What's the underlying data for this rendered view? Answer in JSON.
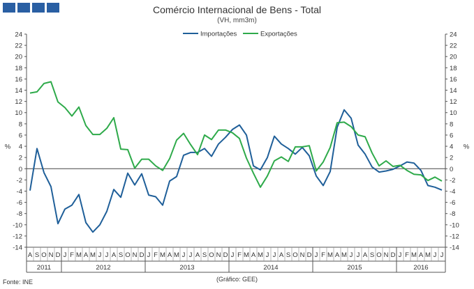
{
  "header": {
    "title": "Comércio Internacional de Bens - Total",
    "subtitle": "(VH, mm3m)"
  },
  "footer": {
    "source": "Fonte: INE",
    "credit": "(Gráfico: GEE)"
  },
  "colors": {
    "logo": "#2a5fa3",
    "importacoes": "#1f5f99",
    "exportacoes": "#2eaa4a"
  },
  "chart_data": {
    "type": "line",
    "ylabel": "%",
    "ylim": [
      -14,
      24
    ],
    "yticks": [
      -14,
      -12,
      -10,
      -8,
      -6,
      -4,
      -2,
      0,
      2,
      4,
      6,
      8,
      10,
      12,
      14,
      16,
      18,
      20,
      22,
      24
    ],
    "grid": false,
    "legend": "top-center",
    "categories": [
      "A",
      "S",
      "O",
      "N",
      "D",
      "J",
      "F",
      "M",
      "A",
      "M",
      "J",
      "J",
      "A",
      "S",
      "O",
      "N",
      "D",
      "J",
      "F",
      "M",
      "A",
      "M",
      "J",
      "J",
      "A",
      "S",
      "O",
      "N",
      "D",
      "J",
      "F",
      "M",
      "A",
      "M",
      "J",
      "J",
      "A",
      "S",
      "O",
      "N",
      "D",
      "J",
      "F",
      "M",
      "A",
      "M",
      "J",
      "J",
      "A",
      "S",
      "O",
      "N",
      "D",
      "J",
      "F",
      "M",
      "A",
      "M",
      "J",
      "J"
    ],
    "years": [
      {
        "label": "2011",
        "start": 0,
        "end": 4
      },
      {
        "label": "2012",
        "start": 5,
        "end": 16
      },
      {
        "label": "2013",
        "start": 17,
        "end": 28
      },
      {
        "label": "2014",
        "start": 29,
        "end": 40
      },
      {
        "label": "2015",
        "start": 41,
        "end": 52
      },
      {
        "label": "2016",
        "start": 53,
        "end": 59
      }
    ],
    "series": [
      {
        "name": "Importações",
        "values": [
          -3.9,
          3.6,
          -0.7,
          -3.2,
          -9.8,
          -7.2,
          -6.5,
          -4.6,
          -9.6,
          -11.3,
          -10.0,
          -7.6,
          -3.7,
          -5.1,
          -0.8,
          -2.9,
          -0.9,
          -4.7,
          -5.0,
          -6.5,
          -2.2,
          -1.4,
          2.4,
          2.9,
          2.9,
          3.6,
          2.2,
          4.4,
          5.6,
          7.0,
          7.8,
          6.0,
          0.5,
          -0.2,
          2.0,
          5.8,
          4.4,
          3.6,
          2.6,
          3.8,
          2.3,
          -1.3,
          -3.0,
          -0.5,
          7.4,
          10.5,
          9.0,
          4.2,
          2.6,
          0.3,
          -0.6,
          -0.4,
          -0.1,
          0.5,
          1.2,
          1.0,
          -0.3,
          -3.0,
          -3.3,
          -3.8
        ]
      },
      {
        "name": "Exportações",
        "values": [
          13.5,
          13.7,
          15.2,
          15.5,
          11.9,
          10.9,
          9.4,
          11.0,
          7.7,
          6.1,
          6.1,
          7.2,
          9.1,
          3.5,
          3.4,
          0.1,
          1.7,
          1.7,
          0.5,
          -0.3,
          1.8,
          5.1,
          6.3,
          4.3,
          2.5,
          6.0,
          5.2,
          6.9,
          6.9,
          6.4,
          5.4,
          1.9,
          -0.8,
          -3.3,
          -1.3,
          1.4,
          2.1,
          1.3,
          3.9,
          3.9,
          4.1,
          -0.4,
          1.2,
          3.8,
          8.2,
          8.3,
          7.5,
          6.0,
          5.7,
          2.8,
          0.5,
          1.4,
          0.4,
          0.6,
          -0.3,
          -1.0,
          -1.1,
          -2.1,
          -1.5,
          -2.2
        ]
      }
    ]
  }
}
